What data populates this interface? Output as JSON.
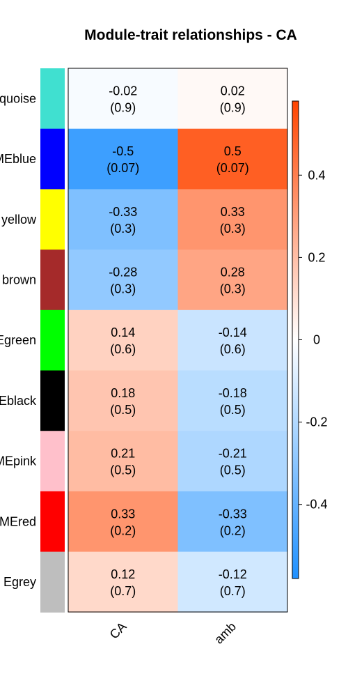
{
  "chart_data": {
    "type": "heatmap",
    "title": "Module-trait relationships - CA",
    "columns": [
      "CA",
      "amb"
    ],
    "rows": [
      {
        "label": "quoise",
        "module_color": "#40E0D0",
        "values": [
          -0.02,
          0.02
        ],
        "pvalues": [
          "(0.9)",
          "(0.9)"
        ],
        "texts": [
          "-0.02",
          "0.02"
        ]
      },
      {
        "label": "MEblue",
        "module_color": "#0000FF",
        "values": [
          -0.5,
          0.5
        ],
        "pvalues": [
          "(0.07)",
          "(0.07)"
        ],
        "texts": [
          "-0.5",
          "0.5"
        ]
      },
      {
        "label": "yellow",
        "module_color": "#FFFF00",
        "values": [
          -0.33,
          0.33
        ],
        "pvalues": [
          "(0.3)",
          "(0.3)"
        ],
        "texts": [
          "-0.33",
          "0.33"
        ]
      },
      {
        "label": "brown",
        "module_color": "#A52A2A",
        "values": [
          -0.28,
          0.28
        ],
        "pvalues": [
          "(0.3)",
          "(0.3)"
        ],
        "texts": [
          "-0.28",
          "0.28"
        ]
      },
      {
        "label": "Egreen",
        "module_color": "#00FF00",
        "values": [
          0.14,
          -0.14
        ],
        "pvalues": [
          "(0.6)",
          "(0.6)"
        ],
        "texts": [
          "0.14",
          "-0.14"
        ]
      },
      {
        "label": "Eblack",
        "module_color": "#000000",
        "values": [
          0.18,
          -0.18
        ],
        "pvalues": [
          "(0.5)",
          "(0.5)"
        ],
        "texts": [
          "0.18",
          "-0.18"
        ]
      },
      {
        "label": "MEpink",
        "module_color": "#FFC0CB",
        "values": [
          0.21,
          -0.21
        ],
        "pvalues": [
          "(0.5)",
          "(0.5)"
        ],
        "texts": [
          "0.21",
          "-0.21"
        ]
      },
      {
        "label": "MEred",
        "module_color": "#FF0000",
        "values": [
          0.33,
          -0.33
        ],
        "pvalues": [
          "(0.2)",
          "(0.2)"
        ],
        "texts": [
          "0.33",
          "-0.33"
        ]
      },
      {
        "label": "Egrey",
        "module_color": "#BEBEBE",
        "values": [
          0.12,
          -0.12
        ],
        "pvalues": [
          "(0.7)",
          "(0.7)"
        ],
        "texts": [
          "0.12",
          "-0.12"
        ]
      }
    ],
    "colorbar": {
      "range": [
        -0.58,
        0.58
      ],
      "ticks": [
        0.4,
        0.2,
        0,
        -0.2,
        -0.4
      ],
      "tick_labels": [
        "0.4",
        "0.2",
        "0",
        "-0.2",
        "-0.4"
      ],
      "low_color": "#1E90FF",
      "mid_color": "#FFFFFF",
      "high_color": "#FF4500"
    }
  }
}
